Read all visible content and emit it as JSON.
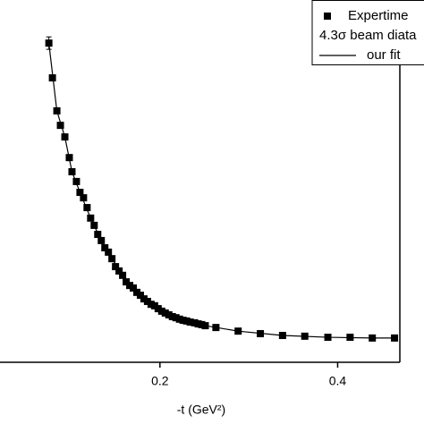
{
  "chart_data": {
    "type": "scatter",
    "x_label": "-t (GeV²)",
    "xlim": [
      0.02,
      0.47
    ],
    "xticks": [
      0.2,
      0.4
    ],
    "ylim": [
      0,
      100
    ],
    "legend": "upper right",
    "series": [
      {
        "name": "Expertime",
        "color": "#000000",
        "marker": "square",
        "x": [
          0.075,
          0.079,
          0.084,
          0.088,
          0.093,
          0.098,
          0.101,
          0.106,
          0.11,
          0.114,
          0.118,
          0.122,
          0.126,
          0.13,
          0.134,
          0.138,
          0.142,
          0.146,
          0.15,
          0.154,
          0.158,
          0.162,
          0.166,
          0.17,
          0.174,
          0.178,
          0.182,
          0.186,
          0.19,
          0.194,
          0.198,
          0.202,
          0.206,
          0.21,
          0.214,
          0.218,
          0.222,
          0.226,
          0.23,
          0.234,
          0.239,
          0.243,
          0.247,
          0.251,
          0.263,
          0.288,
          0.313,
          0.338,
          0.363,
          0.389,
          0.414,
          0.439,
          0.464
        ],
        "values": [
          88.1,
          78.5,
          69.4,
          65.4,
          62.2,
          56.5,
          52.6,
          49.9,
          46.9,
          45.4,
          42.7,
          39.8,
          37.8,
          35.3,
          33.6,
          31.6,
          30.4,
          28.6,
          26.4,
          25.2,
          24.0,
          22.2,
          21.2,
          20.5,
          19.3,
          18.5,
          17.5,
          16.8,
          16.0,
          15.6,
          14.8,
          14.1,
          13.6,
          13.1,
          12.6,
          12.3,
          11.9,
          11.6,
          11.4,
          11.1,
          10.9,
          10.6,
          10.4,
          10.1,
          9.6,
          8.6,
          7.9,
          7.4,
          7.2,
          6.9,
          6.9,
          6.7,
          6.7
        ],
        "errors": [
          1.7,
          0.6,
          0.5,
          0.5,
          0.5,
          0.4,
          0.4,
          0.4,
          0.4,
          0.4,
          0.4,
          0.3,
          0.3,
          0.3,
          0.3,
          0.3,
          0.3,
          0.3,
          0.3,
          0.3,
          0.3,
          0.3,
          0.3,
          0.3,
          0.3,
          0.3,
          0.3,
          0.3,
          0.3,
          0.3,
          0.3,
          0.3,
          0.3,
          0.3,
          0.3,
          0.3,
          0.3,
          0.3,
          0.3,
          0.3,
          0.3,
          0.3,
          0.3,
          0.3,
          0.3,
          0.3,
          0.3,
          0.3,
          0.3,
          0.3,
          0.3,
          0.3,
          0.3
        ]
      },
      {
        "name": "4.3σ beam diata",
        "color": "#000000",
        "x": [],
        "values": []
      },
      {
        "name": "our fit",
        "color": "#000000",
        "line": true,
        "x": [
          0.075,
          0.084,
          0.093,
          0.101,
          0.11,
          0.122,
          0.134,
          0.146,
          0.158,
          0.17,
          0.182,
          0.198,
          0.214,
          0.23,
          0.251,
          0.288,
          0.338,
          0.389,
          0.439,
          0.464
        ],
        "values": [
          88.1,
          69.4,
          62.2,
          52.6,
          46.9,
          39.8,
          33.6,
          28.6,
          24.0,
          20.5,
          17.5,
          14.8,
          12.6,
          11.4,
          10.1,
          8.6,
          7.4,
          6.9,
          6.7,
          6.7
        ]
      }
    ]
  }
}
